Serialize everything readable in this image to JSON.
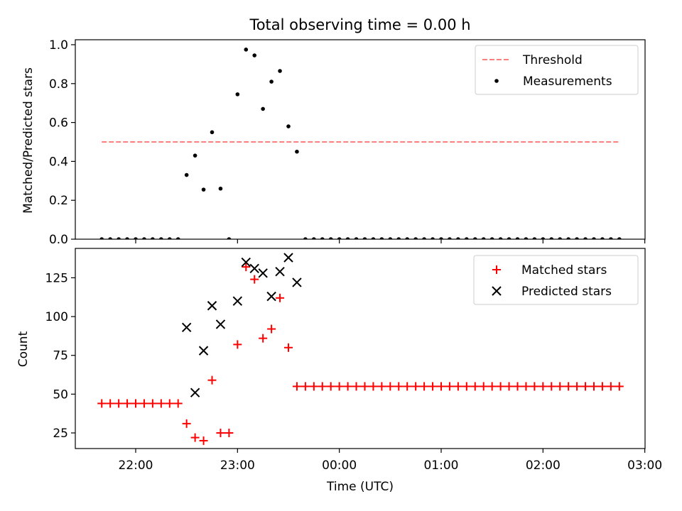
{
  "title": "Total observing time = 0.00 h",
  "xlabel": "Time (UTC)",
  "colors": {
    "threshold": "#ff7f7f",
    "measurements": "#000000",
    "matched": "#ff0000",
    "predicted": "#000000"
  },
  "chart_data": [
    {
      "type": "scatter",
      "panel": "top",
      "title": "Total observing time = 0.00 h",
      "ylabel": "Matched/Predicted stars",
      "ylim": [
        0,
        1.03
      ],
      "yticks": [
        0.0,
        0.2,
        0.4,
        0.6,
        0.8,
        1.0
      ],
      "ytick_labels": [
        "0.0",
        "0.2",
        "0.4",
        "0.6",
        "0.8",
        "1.0"
      ],
      "legend_position": "top-right",
      "series": [
        {
          "name": "Threshold",
          "kind": "dashed-line",
          "color": "#ff7f7f",
          "x": [
            "21:40",
            "02:45"
          ],
          "y": [
            0.5,
            0.5
          ]
        },
        {
          "name": "Measurements",
          "kind": "dot",
          "color": "#000000",
          "x": [
            "21:40",
            "21:45",
            "21:50",
            "21:55",
            "22:00",
            "22:05",
            "22:10",
            "22:15",
            "22:20",
            "22:25",
            "22:30",
            "22:35",
            "22:40",
            "22:45",
            "22:50",
            "22:55",
            "23:00",
            "23:05",
            "23:10",
            "23:15",
            "23:20",
            "23:25",
            "23:30",
            "23:35",
            "23:40",
            "23:45",
            "23:50",
            "23:55",
            "00:00",
            "00:05",
            "00:10",
            "00:15",
            "00:20",
            "00:25",
            "00:30",
            "00:35",
            "00:40",
            "00:45",
            "00:50",
            "00:55",
            "01:00",
            "01:05",
            "01:10",
            "01:15",
            "01:20",
            "01:25",
            "01:30",
            "01:35",
            "01:40",
            "01:45",
            "01:50",
            "01:55",
            "02:00",
            "02:05",
            "02:10",
            "02:15",
            "02:20",
            "02:25",
            "02:30",
            "02:35",
            "02:40",
            "02:45"
          ],
          "y": [
            0,
            0,
            0,
            0,
            0,
            0,
            0,
            0,
            0,
            0,
            0.33,
            0.43,
            0.255,
            0.55,
            0.26,
            0.0,
            0.745,
            0.975,
            0.945,
            0.67,
            0.81,
            0.865,
            0.58,
            0.45,
            0,
            0,
            0,
            0,
            0,
            0,
            0,
            0,
            0,
            0,
            0,
            0,
            0,
            0,
            0,
            0,
            0,
            0,
            0,
            0,
            0,
            0,
            0,
            0,
            0,
            0,
            0,
            0,
            0,
            0,
            0,
            0,
            0,
            0,
            0,
            0,
            0,
            0
          ]
        }
      ]
    },
    {
      "type": "scatter",
      "panel": "bottom",
      "ylabel": "Count",
      "xlabel": "Time (UTC)",
      "ylim": [
        14,
        145
      ],
      "yticks": [
        25,
        50,
        75,
        100,
        125
      ],
      "ytick_labels": [
        "25",
        "50",
        "75",
        "100",
        "125"
      ],
      "xlim": [
        "21:26",
        "03:00"
      ],
      "xticks": [
        "22:00",
        "23:00",
        "00:00",
        "01:00",
        "02:00",
        "03:00"
      ],
      "legend_position": "top-right",
      "series": [
        {
          "name": "Matched stars",
          "kind": "plus",
          "color": "#ff0000",
          "x": [
            "21:40",
            "21:45",
            "21:50",
            "21:55",
            "22:00",
            "22:05",
            "22:10",
            "22:15",
            "22:20",
            "22:25",
            "22:30",
            "22:35",
            "22:40",
            "22:45",
            "22:50",
            "22:55",
            "23:00",
            "23:05",
            "23:10",
            "23:15",
            "23:20",
            "23:25",
            "23:30",
            "23:35",
            "23:40",
            "23:45",
            "23:50",
            "23:55",
            "00:00",
            "00:05",
            "00:10",
            "00:15",
            "00:20",
            "00:25",
            "00:30",
            "00:35",
            "00:40",
            "00:45",
            "00:50",
            "00:55",
            "01:00",
            "01:05",
            "01:10",
            "01:15",
            "01:20",
            "01:25",
            "01:30",
            "01:35",
            "01:40",
            "01:45",
            "01:50",
            "01:55",
            "02:00",
            "02:05",
            "02:10",
            "02:15",
            "02:20",
            "02:25",
            "02:30",
            "02:35",
            "02:40",
            "02:45"
          ],
          "y": [
            44,
            44,
            44,
            44,
            44,
            44,
            44,
            44,
            44,
            44,
            31,
            22,
            20,
            59,
            25,
            25,
            82,
            132,
            124,
            86,
            92,
            112,
            80,
            55,
            55,
            55,
            55,
            55,
            55,
            55,
            55,
            55,
            55,
            55,
            55,
            55,
            55,
            55,
            55,
            55,
            55,
            55,
            55,
            55,
            55,
            55,
            55,
            55,
            55,
            55,
            55,
            55,
            55,
            55,
            55,
            55,
            55,
            55,
            55,
            55,
            55,
            55
          ]
        },
        {
          "name": "Predicted stars",
          "kind": "x",
          "color": "#000000",
          "x": [
            "22:30",
            "22:35",
            "22:40",
            "22:45",
            "22:50",
            "23:00",
            "23:05",
            "23:10",
            "23:15",
            "23:20",
            "23:25",
            "23:30",
            "23:35"
          ],
          "y": [
            93,
            51,
            78,
            107,
            95,
            110,
            135,
            131,
            128,
            113,
            129,
            138,
            122
          ]
        }
      ]
    }
  ]
}
